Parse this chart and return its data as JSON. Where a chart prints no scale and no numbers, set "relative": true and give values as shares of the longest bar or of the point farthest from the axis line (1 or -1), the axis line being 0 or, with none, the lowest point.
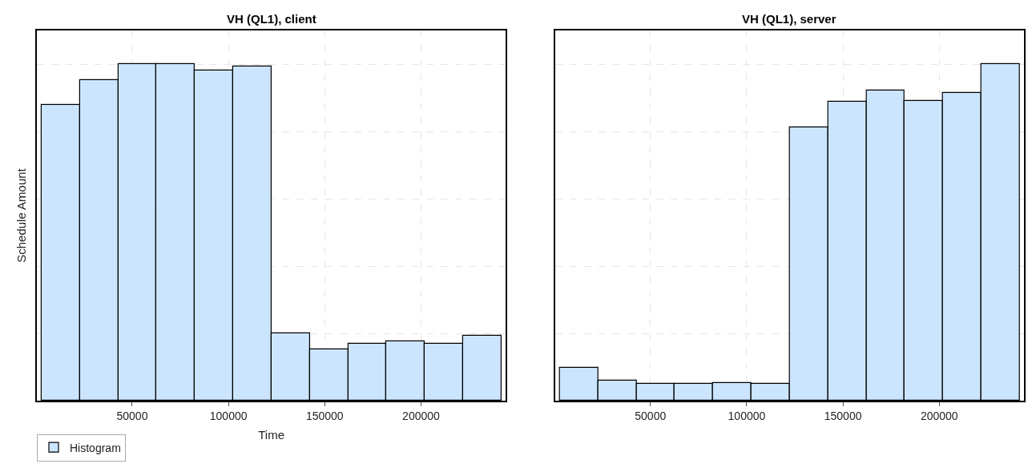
{
  "chart_data": [
    {
      "type": "bar",
      "title": "VH (QL1), client",
      "xlabel": "Time",
      "ylabel": "Schedule Amount",
      "relative": true,
      "x": [
        12950,
        32850,
        52750,
        72650,
        92550,
        112450,
        132350,
        152250,
        172150,
        192050,
        211950,
        231850
      ],
      "series": [
        {
          "name": "Histogram",
          "color": "#cce5ff",
          "values": [
            0.878,
            0.952,
            1,
            1,
            0.98,
            0.993,
            0.2,
            0.152,
            0.169,
            0.176,
            0.169,
            0.193
          ]
        }
      ],
      "xlim": [
        500,
        244000
      ],
      "xticks": [
        50000,
        100000,
        150000,
        200000
      ],
      "grid": true,
      "legend": "bottom left"
    },
    {
      "type": "bar",
      "title": "VH (QL1), server",
      "relative": true,
      "x": [
        12950,
        32850,
        52750,
        72650,
        92550,
        112450,
        132350,
        152250,
        172150,
        192050,
        211950,
        231850
      ],
      "series": [
        {
          "color": "#cce5ff",
          "values": [
            0.097,
            0.059,
            0.05,
            0.05,
            0.053,
            0.05,
            0.813,
            0.888,
            0.922,
            0.891,
            0.915,
            1
          ]
        }
      ],
      "xlim": [
        500,
        244000
      ],
      "xticks": [
        50000,
        100000,
        150000,
        200000
      ],
      "grid": true
    }
  ]
}
